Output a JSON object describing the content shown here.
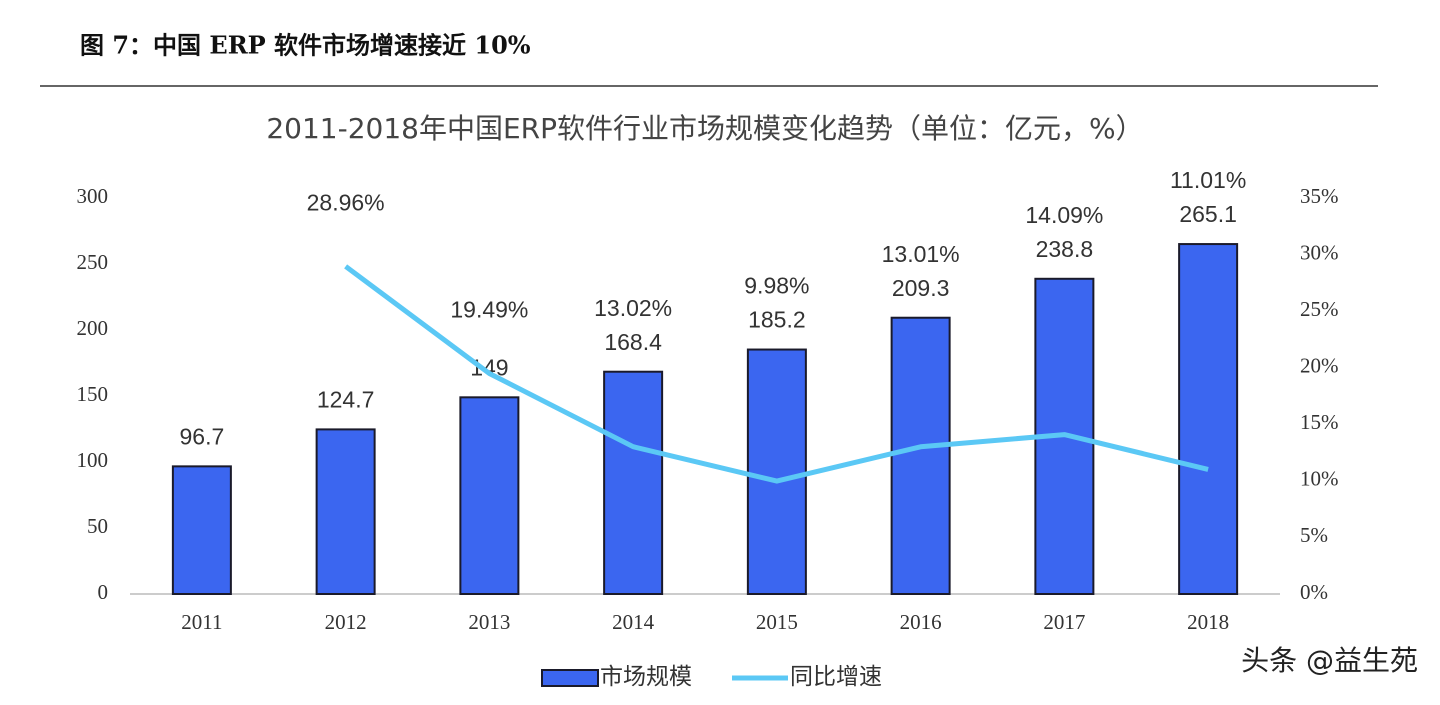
{
  "header": "图 7：中国 ERP 软件市场增速接近 10%",
  "chart_data": {
    "type": "combo",
    "title": "2011-2018年中国ERP软件行业市场规模变化趋势（单位：亿元，%）",
    "categories": [
      "2011",
      "2012",
      "2013",
      "2014",
      "2015",
      "2016",
      "2017",
      "2018"
    ],
    "series": [
      {
        "name": "市场规模",
        "type": "bar",
        "color": "#3b66f0",
        "values": [
          96.7,
          124.7,
          149,
          168.4,
          185.2,
          209.3,
          238.8,
          265.1
        ]
      },
      {
        "name": "同比增速",
        "type": "line",
        "axis": "y2",
        "color": "#5bc8f5",
        "values": [
          null,
          28.96,
          19.49,
          13.02,
          9.98,
          13.01,
          14.09,
          11.01
        ],
        "value_labels": [
          null,
          "28.96%",
          "19.49%",
          "13.02%",
          "9.98%",
          "13.01%",
          "14.09%",
          "11.01%"
        ]
      }
    ],
    "ylim": [
      0,
      300
    ],
    "yticks": [
      0,
      50,
      100,
      150,
      200,
      250,
      300
    ],
    "y2lim": [
      0,
      35
    ],
    "y2ticks": [
      {
        "value": 0,
        "label": "0%"
      },
      {
        "value": 5,
        "label": "5%"
      },
      {
        "value": 10,
        "label": "10%"
      },
      {
        "value": 15,
        "label": "15%"
      },
      {
        "value": 20,
        "label": "20%"
      },
      {
        "value": 25,
        "label": "25%"
      },
      {
        "value": 30,
        "label": "30%"
      },
      {
        "value": 35,
        "label": "35%"
      }
    ],
    "legend": "bottom"
  },
  "watermark": "头条 @益生苑"
}
